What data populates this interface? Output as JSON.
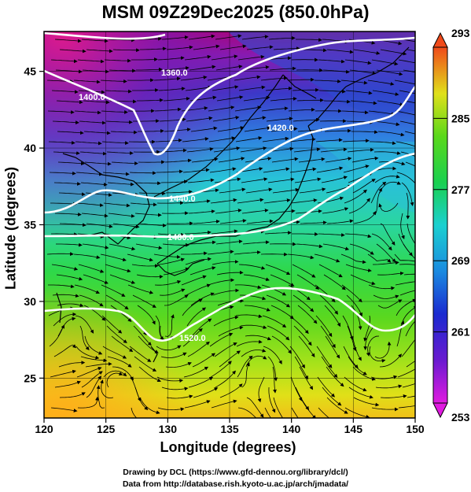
{
  "title": "MSM 09Z29Dec2025 (850.0hPa)",
  "xaxis": {
    "label": "Longitude (degrees)",
    "ticks": [
      "120",
      "125",
      "130",
      "135",
      "140",
      "145",
      "150"
    ]
  },
  "yaxis": {
    "label": "Latitude  (degrees)",
    "ticks": [
      "25",
      "30",
      "35",
      "40",
      "45"
    ]
  },
  "colorbar": {
    "ticks": [
      "293",
      "285",
      "277",
      "269",
      "261",
      "253"
    ]
  },
  "contour_labels": [
    "1360.0",
    "1400.0",
    "1420.0",
    "1440.0",
    "1480.0",
    "1520.0"
  ],
  "credits": {
    "line1": "Drawing by DCL (https://www.gfd-dennou.org/library/dcl/)",
    "line2": "Data from http://database.rish.kyoto-u.ac.jp/arch/jmadata/"
  },
  "chart_data": {
    "type": "heatmap",
    "title": "MSM 09Z29Dec2025 (850.0hPa)",
    "xlabel": "Longitude (degrees)",
    "ylabel": "Latitude  (degrees)",
    "xlim": [
      120,
      150
    ],
    "ylim": [
      22.4,
      47.6
    ],
    "colorbar_range": [
      253,
      293
    ],
    "colorbar_ticks": [
      253,
      261,
      269,
      277,
      285,
      293
    ],
    "grid": true,
    "overlays": [
      "temperature shading",
      "geopotential height contours (white)",
      "wind streamlines (black)"
    ]
  }
}
